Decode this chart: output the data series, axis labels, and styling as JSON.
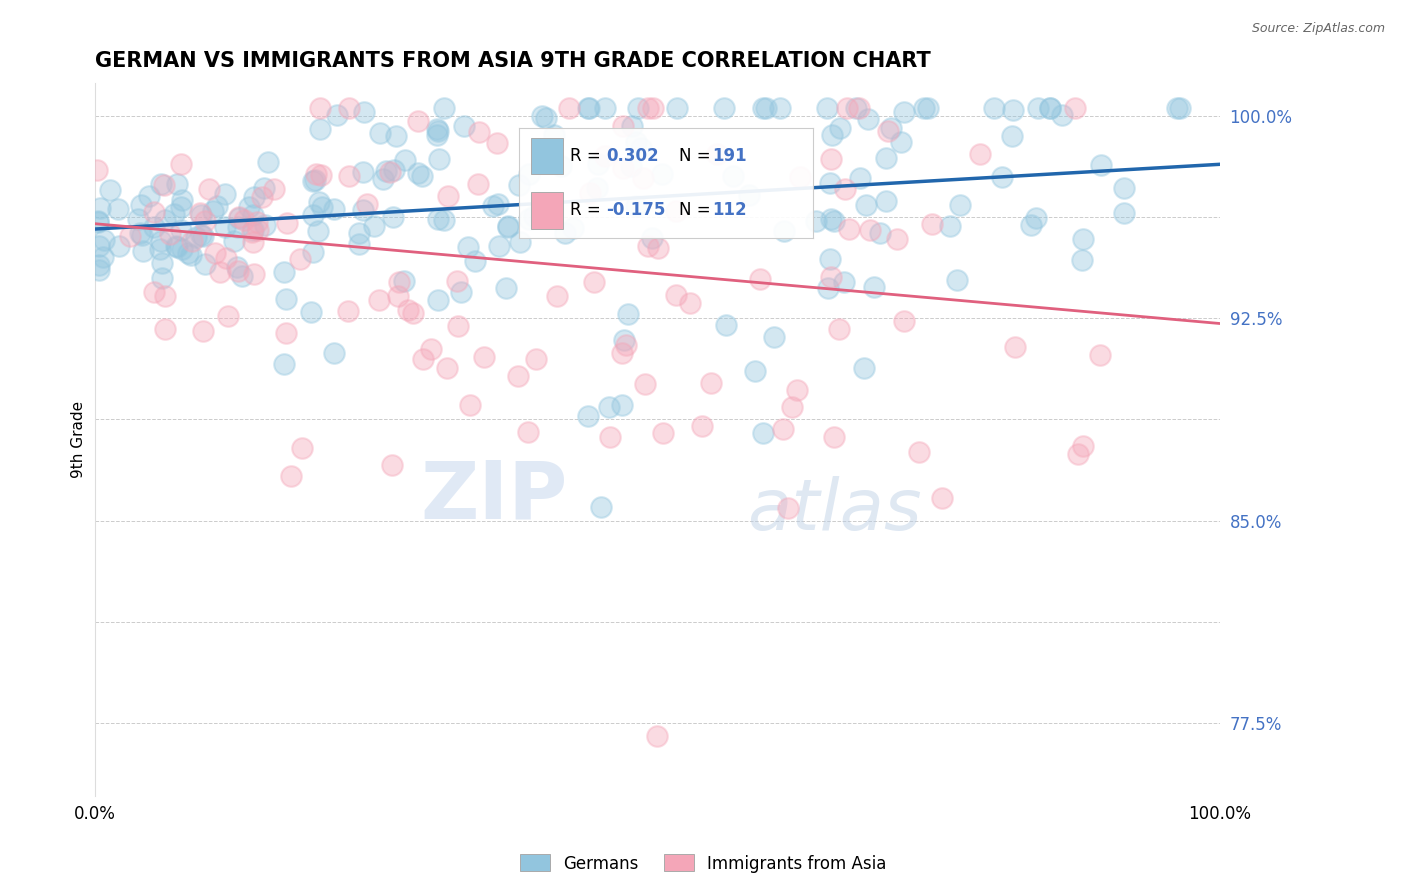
{
  "title": "GERMAN VS IMMIGRANTS FROM ASIA 9TH GRADE CORRELATION CHART",
  "source_text": "Source: ZipAtlas.com",
  "ylabel": "9th Grade",
  "xmin": 0.0,
  "xmax": 1.0,
  "ymin": 0.748,
  "ymax": 1.012,
  "yticks": [
    0.775,
    0.8125,
    0.85,
    0.8875,
    0.925,
    0.9625,
    1.0
  ],
  "ytick_labels": [
    "77.5%",
    "",
    "85.0%",
    "",
    "92.5%",
    "",
    "100.0%"
  ],
  "title_fontsize": 15,
  "label_fontsize": 11,
  "tick_fontsize": 12,
  "blue_color": "#92c5de",
  "pink_color": "#f4a6b8",
  "blue_line_color": "#2166ac",
  "pink_line_color": "#e0607e",
  "trend_blue_x0": 0.0,
  "trend_blue_x1": 1.0,
  "trend_blue_y0": 0.958,
  "trend_blue_y1": 0.982,
  "trend_pink_x0": 0.0,
  "trend_pink_x1": 1.0,
  "trend_pink_y0": 0.96,
  "trend_pink_y1": 0.923,
  "watermark_zip": "ZIP",
  "watermark_atlas": "atlas",
  "legend_label1": "Germans",
  "legend_label2": "Immigrants from Asia",
  "n_blue": 191,
  "n_pink": 112,
  "R_blue": 0.302,
  "R_pink": -0.175
}
